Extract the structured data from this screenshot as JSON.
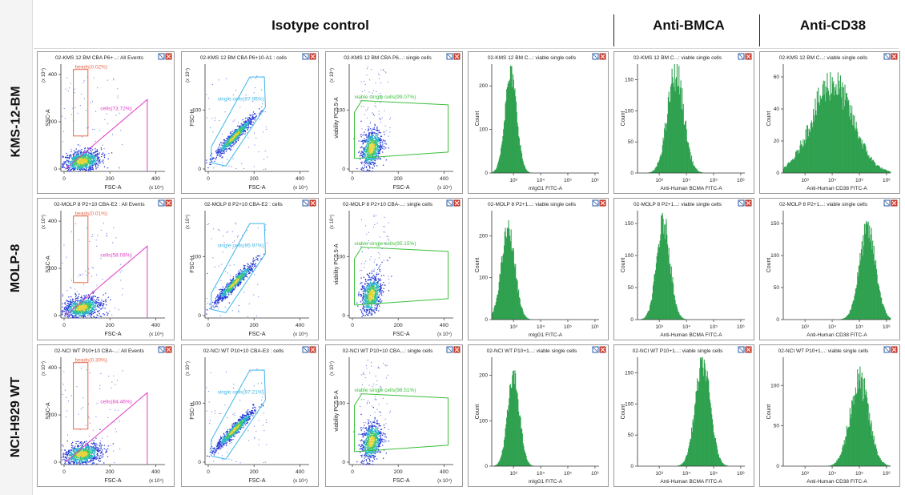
{
  "headers": {
    "isotype": "Isotype control",
    "bcma": "Anti-BMCA",
    "cd38": "Anti-CD38"
  },
  "rows": [
    "KMS-12-BM",
    "MOLP-8",
    "NCI-H929 WT"
  ],
  "panels": [
    [
      {
        "kind": "dot",
        "title": "02-KMS 12 BM CBA P6+...: All Events",
        "xlabel": "FSC-A",
        "ylabel": "SSC-A",
        "ticks": [
          "0",
          "200",
          "400"
        ],
        "yticks": [
          "0",
          "200",
          "400"
        ],
        "exp": "(x 10⁴)",
        "gates": [
          {
            "type": "rect",
            "label": "beads(0.02%)",
            "color": "#e8664a"
          },
          {
            "type": "tri",
            "label": "cells(72.72%)",
            "color": "#e23cc7"
          }
        ]
      },
      {
        "kind": "dot",
        "title": "02-KMS 12 BM CBA P6+10-A1 : cells",
        "xlabel": "FSC-A",
        "ylabel": "FSC-H",
        "ticks": [
          "0",
          "200",
          "400"
        ],
        "yticks": [
          "0",
          "100"
        ],
        "exp": "(x 10⁴)",
        "gates": [
          {
            "type": "poly",
            "label": "single cells(97.96%)",
            "color": "#3cb6e8"
          }
        ]
      },
      {
        "kind": "dot",
        "title": "02-KMS 12 BM CBA P6...: single cells",
        "xlabel": "FSC-A",
        "ylabel": "viability PC5.5-A",
        "ticks": [
          "0",
          "200",
          "400"
        ],
        "yticks": [
          "0",
          "100"
        ],
        "exp": "(x 10⁴)",
        "gates": [
          {
            "type": "box",
            "label": "viable single cells(99.07%)",
            "color": "#3cbf3c"
          }
        ]
      },
      {
        "kind": "hist",
        "title": "02-KMS 12 BM C...: viable single cells",
        "xlabel": "mIgG1 FITC-A",
        "ylabel": "Count",
        "yticks": [
          "0",
          "100",
          "200"
        ],
        "ymax": 250,
        "xcenter": 2.9,
        "sigma": 0.22,
        "peak": 225,
        "noise": 0.12
      },
      {
        "kind": "hist",
        "title": "02-KMS 12 BM C...: viable single cells",
        "xlabel": "Anti-Human BCMA FITC-A",
        "ylabel": "Count",
        "yticks": [
          "0",
          "50",
          "100",
          "150"
        ],
        "ymax": 175,
        "xcenter": 3.6,
        "sigma": 0.3,
        "peak": 160,
        "noise": 0.18
      },
      {
        "kind": "hist",
        "title": "02-KMS 12 BM C...: viable single cells",
        "xlabel": "Anti-Human CD38 FITC-A",
        "ylabel": "Count",
        "yticks": [
          "0",
          "20",
          "40",
          "60"
        ],
        "ymax": 68,
        "xcenter": 4.0,
        "sigma": 0.75,
        "peak": 56,
        "noise": 0.2
      }
    ],
    [
      {
        "kind": "dot",
        "title": "02-MOLP 8 P2+10 CBA-E2 : All Events",
        "xlabel": "FSC-A",
        "ylabel": "SSC-A",
        "ticks": [
          "0",
          "200",
          "400"
        ],
        "yticks": [
          "0",
          "200",
          "400"
        ],
        "exp": "(x 10⁴)",
        "gates": [
          {
            "type": "rect",
            "label": "beads(0.01%)",
            "color": "#e8664a"
          },
          {
            "type": "tri",
            "label": "cells(58.03%)",
            "color": "#e23cc7"
          }
        ]
      },
      {
        "kind": "dot",
        "title": "02-MOLP 8 P2+10 CBA-E2 : cells",
        "xlabel": "FSC-A",
        "ylabel": "FSC-H",
        "ticks": [
          "0",
          "200",
          "400"
        ],
        "yticks": [
          "0",
          "100"
        ],
        "exp": "(x 10⁴)",
        "gates": [
          {
            "type": "poly",
            "label": "single cells(95.97%)",
            "color": "#3cb6e8"
          }
        ]
      },
      {
        "kind": "dot",
        "title": "02-MOLP 8 P2+10 CBA-...: single cells",
        "xlabel": "FSC-A",
        "ylabel": "viability PC5.5-A",
        "ticks": [
          "0",
          "200",
          "400"
        ],
        "yticks": [
          "0",
          "100"
        ],
        "exp": "(x 10⁴)",
        "gates": [
          {
            "type": "box",
            "label": "viable single cells(95.15%)",
            "color": "#3cbf3c"
          }
        ]
      },
      {
        "kind": "hist",
        "title": "02-MOLP 8 P2+1...: viable single cells",
        "xlabel": "mIgG1 FITC-A",
        "ylabel": "Count",
        "yticks": [
          "0",
          "100",
          "200"
        ],
        "ymax": 260,
        "xcenter": 2.8,
        "sigma": 0.25,
        "peak": 215,
        "noise": 0.12
      },
      {
        "kind": "hist",
        "title": "02-MOLP 8 P2+1...: viable single cells",
        "xlabel": "Anti-Human BCMA FITC-A",
        "ylabel": "Count",
        "yticks": [
          "0",
          "50",
          "100",
          "150"
        ],
        "ymax": 170,
        "xcenter": 3.15,
        "sigma": 0.25,
        "peak": 150,
        "noise": 0.15
      },
      {
        "kind": "hist",
        "title": "02-MOLP 8 P2+1...: viable single cells",
        "xlabel": "Anti-Human CD38 FITC-A",
        "ylabel": "Count",
        "yticks": [
          "0",
          "50",
          "100",
          "150"
        ],
        "ymax": 170,
        "xcenter": 5.3,
        "sigma": 0.3,
        "peak": 140,
        "noise": 0.15
      }
    ],
    [
      {
        "kind": "dot",
        "title": "02-NCI WT P10+10 CBA-...: All Events",
        "xlabel": "FSC-A",
        "ylabel": "SSC-A",
        "ticks": [
          "0",
          "200",
          "400"
        ],
        "yticks": [
          "0",
          "200",
          "400"
        ],
        "exp": "(x 10⁴)",
        "gates": [
          {
            "type": "rect",
            "label": "beads(0.30%)",
            "color": "#e8664a"
          },
          {
            "type": "tri",
            "label": "cells(84.46%)",
            "color": "#e23cc7"
          }
        ]
      },
      {
        "kind": "dot",
        "title": "02-NCI WT P10+10 CBA-E3 : cells",
        "xlabel": "FSC-A",
        "ylabel": "FSC-H",
        "ticks": [
          "0",
          "200",
          "400"
        ],
        "yticks": [
          "0",
          "100"
        ],
        "exp": "(x 10⁴)",
        "gates": [
          {
            "type": "poly",
            "label": "single cells(97.21%)",
            "color": "#3cb6e8"
          }
        ]
      },
      {
        "kind": "dot",
        "title": "02-NCI WT P10+10 CBA...: single cells",
        "xlabel": "FSC-A",
        "ylabel": "viability PC5.5-A",
        "ticks": [
          "0",
          "200",
          "400"
        ],
        "yticks": [
          "0",
          "100"
        ],
        "exp": "(x 10⁴)",
        "gates": [
          {
            "type": "box",
            "label": "viable single cells(98.51%)",
            "color": "#3cbf3c"
          }
        ]
      },
      {
        "kind": "hist",
        "title": "02-NCI WT P10+1...: viable single cells",
        "xlabel": "mIgG1 FITC-A",
        "ylabel": "Count",
        "yticks": [
          "0",
          "100",
          "200"
        ],
        "ymax": 240,
        "xcenter": 3.0,
        "sigma": 0.22,
        "peak": 195,
        "noise": 0.12
      },
      {
        "kind": "hist",
        "title": "02-NCI WT P10+1...: viable single cells",
        "xlabel": "Anti-Human BCMA FITC-A",
        "ylabel": "Count",
        "yticks": [
          "0",
          "50",
          "100",
          "150"
        ],
        "ymax": 175,
        "xcenter": 4.6,
        "sigma": 0.28,
        "peak": 165,
        "noise": 0.12
      },
      {
        "kind": "hist",
        "title": "02-NCI WT P10+1...: viable single cells",
        "xlabel": "Anti-Human CD38 FITC-A",
        "ylabel": "Count",
        "yticks": [
          "0",
          "50",
          "100"
        ],
        "ymax": 135,
        "xcenter": 5.0,
        "sigma": 0.35,
        "peak": 105,
        "noise": 0.2
      }
    ]
  ],
  "chart_data": {
    "type": "histogram-grid",
    "columns": [
      "Isotype control",
      "Isotype control",
      "Isotype control",
      "Isotype control",
      "Anti-BMCA",
      "Anti-CD38"
    ],
    "rows": [
      "KMS-12-BM",
      "MOLP-8",
      "NCI-H929 WT"
    ],
    "hist_xticks": [
      "10³",
      "10⁴",
      "10⁵",
      "10⁶"
    ],
    "gate_percentages": {
      "KMS-12-BM": {
        "beads": "0.02%",
        "cells": "72.72%",
        "single_cells": "97.96%",
        "viable_single_cells": "99.07%"
      },
      "MOLP-8": {
        "beads": "0.01%",
        "cells": "58.03%",
        "single_cells": "95.97%",
        "viable_single_cells": "95.15%"
      },
      "NCI-H929 WT": {
        "beads": "0.30%",
        "cells": "84.46%",
        "single_cells": "97.21%",
        "viable_single_cells": "98.51%"
      }
    }
  }
}
